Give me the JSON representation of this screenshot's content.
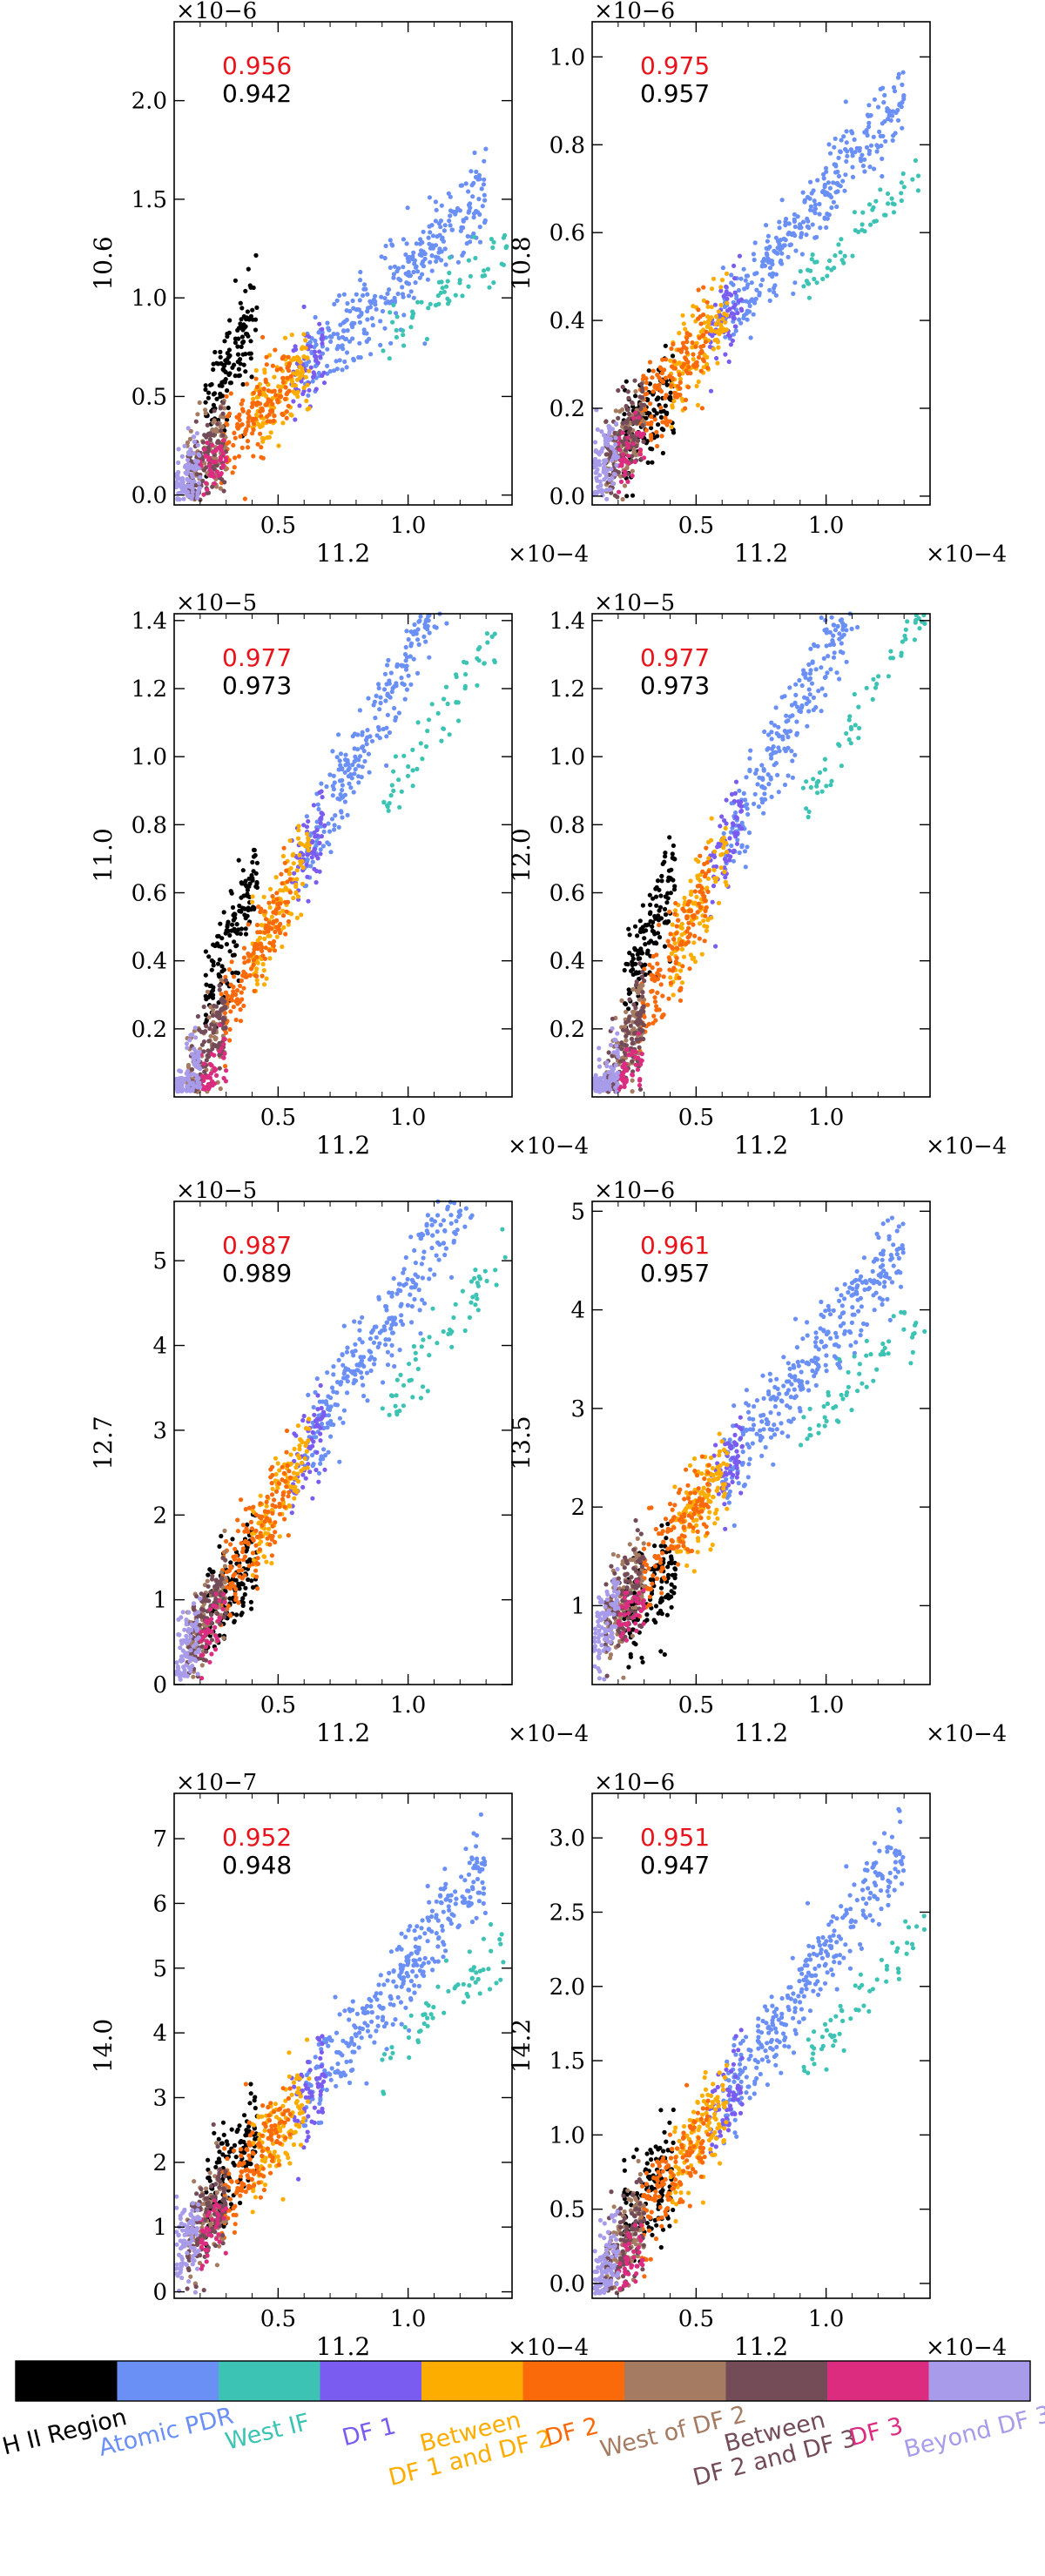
{
  "chart_data": [
    {
      "type": "scatter",
      "ylabel": "10.6",
      "xlabel": "11.2",
      "x_multiplier": "×10−4",
      "y_multiplier": "×10−6",
      "xlim": [
        0.1,
        1.4
      ],
      "ylim": [
        -0.05,
        2.4
      ],
      "xticks": [
        0.5,
        1.0
      ],
      "xtick_labels": [
        "0.5",
        "1.0"
      ],
      "yticks": [
        0.0,
        0.5,
        1.0,
        1.5,
        2.0
      ],
      "ytick_labels": [
        "0.0",
        "0.5",
        "1.0",
        "1.5",
        "2.0"
      ],
      "corr_red": "0.956",
      "corr_black": "0.942",
      "slope": 1.25,
      "intercept": -0.1,
      "hii_slope": 2.6,
      "hii_intercept": -0.15
    },
    {
      "type": "scatter",
      "ylabel": "10.8",
      "xlabel": "11.2",
      "x_multiplier": "×10−4",
      "y_multiplier": "×10−6",
      "xlim": [
        0.1,
        1.4
      ],
      "ylim": [
        -0.02,
        1.08
      ],
      "xticks": [
        0.5,
        1.0
      ],
      "xtick_labels": [
        "0.5",
        "1.0"
      ],
      "yticks": [
        0.0,
        0.2,
        0.4,
        0.6,
        0.8,
        1.0
      ],
      "ytick_labels": [
        "0.0",
        "0.2",
        "0.4",
        "0.6",
        "0.8",
        "1.0"
      ],
      "corr_red": "0.975",
      "corr_black": "0.957",
      "slope": 0.72,
      "intercept": -0.03,
      "hii_slope": 0.6,
      "hii_intercept": 0.0
    },
    {
      "type": "scatter",
      "ylabel": "11.0",
      "xlabel": "11.2",
      "x_multiplier": "×10−4",
      "y_multiplier": "×10−5",
      "xlim": [
        0.1,
        1.4
      ],
      "ylim": [
        0.0,
        1.42
      ],
      "xticks": [
        0.5,
        1.0
      ],
      "xtick_labels": [
        "0.5",
        "1.0"
      ],
      "yticks": [
        0.2,
        0.4,
        0.6,
        0.8,
        1.0,
        1.2,
        1.4
      ],
      "ytick_labels": [
        "0.2",
        "0.4",
        "0.6",
        "0.8",
        "1.0",
        "1.2",
        "1.4"
      ],
      "corr_red": "0.977",
      "corr_black": "0.973",
      "slope": 1.5,
      "intercept": -0.2,
      "hii_slope": 1.8,
      "hii_intercept": -0.1
    },
    {
      "type": "scatter",
      "ylabel": "12.0",
      "xlabel": "11.2",
      "x_multiplier": "×10−4",
      "y_multiplier": "×10−5",
      "xlim": [
        0.1,
        1.4
      ],
      "ylim": [
        0.0,
        1.42
      ],
      "xticks": [
        0.5,
        1.0
      ],
      "xtick_labels": [
        "0.5",
        "1.0"
      ],
      "yticks": [
        0.2,
        0.4,
        0.6,
        0.8,
        1.0,
        1.2,
        1.4
      ],
      "ytick_labels": [
        "0.2",
        "0.4",
        "0.6",
        "0.8",
        "1.0",
        "1.2",
        "1.4"
      ],
      "corr_red": "0.977",
      "corr_black": "0.973",
      "slope": 1.5,
      "intercept": -0.2,
      "hii_slope": 1.8,
      "hii_intercept": -0.1
    },
    {
      "type": "scatter",
      "ylabel": "12.7",
      "xlabel": "11.2",
      "x_multiplier": "×10−4",
      "y_multiplier": "×10−5",
      "xlim": [
        0.1,
        1.4
      ],
      "ylim": [
        0.0,
        5.7
      ],
      "xticks": [
        0.5,
        1.0
      ],
      "xtick_labels": [
        "0.5",
        "1.0"
      ],
      "yticks": [
        0,
        1,
        2,
        3,
        4,
        5
      ],
      "ytick_labels": [
        "0",
        "1",
        "2",
        "3",
        "4",
        "5"
      ],
      "corr_red": "0.987",
      "corr_black": "0.989",
      "slope": 5.0,
      "intercept": -0.3,
      "hii_slope": 3.5,
      "hii_intercept": 0.0
    },
    {
      "type": "scatter",
      "ylabel": "13.5",
      "xlabel": "11.2",
      "x_multiplier": "×10−4",
      "y_multiplier": "×10−6",
      "xlim": [
        0.1,
        1.4
      ],
      "ylim": [
        0.2,
        5.1
      ],
      "xticks": [
        0.5,
        1.0
      ],
      "xtick_labels": [
        "0.5",
        "1.0"
      ],
      "yticks": [
        1,
        2,
        3,
        4,
        5
      ],
      "ytick_labels": [
        "1",
        "2",
        "3",
        "4",
        "5"
      ],
      "corr_red": "0.961",
      "corr_black": "0.957",
      "slope": 3.4,
      "intercept": 0.3,
      "hii_slope": 2.0,
      "hii_intercept": 0.5
    },
    {
      "type": "scatter",
      "ylabel": "14.0",
      "xlabel": "11.2",
      "x_multiplier": "×10−4",
      "y_multiplier": "×10−7",
      "xlim": [
        0.1,
        1.4
      ],
      "ylim": [
        -0.1,
        7.7
      ],
      "xticks": [
        0.5,
        1.0
      ],
      "xtick_labels": [
        "0.5",
        "1.0"
      ],
      "yticks": [
        0,
        1,
        2,
        3,
        4,
        5,
        6,
        7
      ],
      "ytick_labels": [
        "0",
        "1",
        "2",
        "3",
        "4",
        "5",
        "6",
        "7"
      ],
      "corr_red": "0.952",
      "corr_black": "0.948",
      "slope": 5.0,
      "intercept": 0.0,
      "hii_slope": 6.0,
      "hii_intercept": 0.0
    },
    {
      "type": "scatter",
      "ylabel": "14.2",
      "xlabel": "11.2",
      "x_multiplier": "×10−4",
      "y_multiplier": "×10−6",
      "xlim": [
        0.1,
        1.4
      ],
      "ylim": [
        -0.1,
        3.3
      ],
      "xticks": [
        0.5,
        1.0
      ],
      "xtick_labels": [
        "0.5",
        "1.0"
      ],
      "yticks": [
        0.0,
        0.5,
        1.0,
        1.5,
        2.0,
        2.5,
        3.0
      ],
      "ytick_labels": [
        "0.0",
        "0.5",
        "1.0",
        "1.5",
        "2.0",
        "2.5",
        "3.0"
      ],
      "corr_red": "0.951",
      "corr_black": "0.947",
      "slope": 2.5,
      "intercept": -0.3,
      "hii_slope": 2.0,
      "hii_intercept": 0.0
    }
  ],
  "legend": {
    "colors": [
      "#000000",
      "#6a8ff5",
      "#3cc3b3",
      "#7a5cf0",
      "#fdac00",
      "#fa6a0a",
      "#a57b62",
      "#744c58",
      "#dc2c80",
      "#a89cea"
    ],
    "labels": [
      {
        "lines": [
          "H II Region"
        ],
        "color": "#000000"
      },
      {
        "lines": [
          "Atomic PDR"
        ],
        "color": "#6a8ff5"
      },
      {
        "lines": [
          "West IF"
        ],
        "color": "#3cc3b3"
      },
      {
        "lines": [
          "DF 1"
        ],
        "color": "#7a5cf0"
      },
      {
        "lines": [
          "Between",
          "DF 1 and DF 2"
        ],
        "color": "#fdac00"
      },
      {
        "lines": [
          "DF 2"
        ],
        "color": "#fa6a0a"
      },
      {
        "lines": [
          "West of DF 2"
        ],
        "color": "#a57b62"
      },
      {
        "lines": [
          "Between",
          "DF 2 and DF 3"
        ],
        "color": "#744c58"
      },
      {
        "lines": [
          "DF 3"
        ],
        "color": "#dc2c80"
      },
      {
        "lines": [
          "Beyond DF 3"
        ],
        "color": "#a89cea"
      }
    ]
  },
  "region_keys": [
    "hii",
    "atomic",
    "westif",
    "df1",
    "betw12",
    "df2",
    "westdf2",
    "betw23",
    "df3",
    "beyond"
  ]
}
